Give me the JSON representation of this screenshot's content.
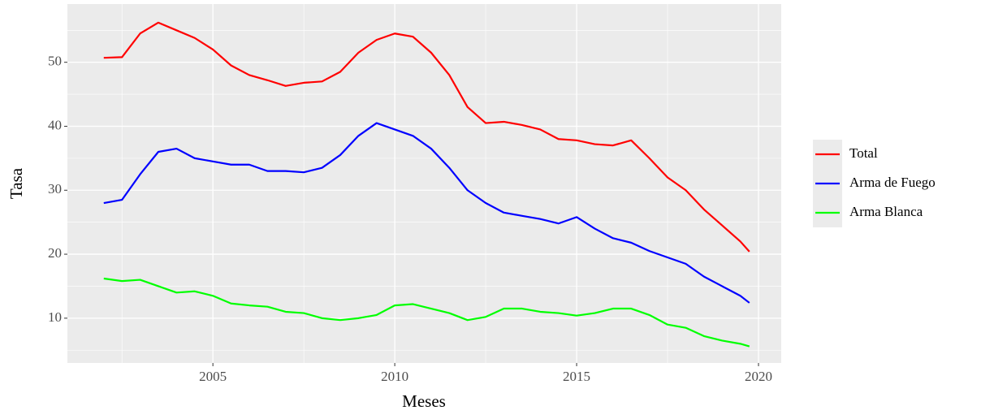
{
  "chart_data": {
    "type": "line",
    "xlabel": "Meses",
    "ylabel": "Tasa",
    "x": [
      2002,
      2002.5,
      2003,
      2003.5,
      2004,
      2004.5,
      2005,
      2005.5,
      2006,
      2006.5,
      2007,
      2007.5,
      2008,
      2008.5,
      2009,
      2009.5,
      2010,
      2010.5,
      2011,
      2011.5,
      2012,
      2012.5,
      2013,
      2013.5,
      2014,
      2014.5,
      2015,
      2015.5,
      2016,
      2016.5,
      2017,
      2017.5,
      2018,
      2018.5,
      2019,
      2019.5,
      2019.75
    ],
    "series": [
      {
        "name": "Total",
        "color": "#ff0000",
        "values": [
          50.7,
          50.8,
          54.5,
          56.2,
          55.0,
          53.8,
          52.0,
          49.5,
          48.0,
          47.2,
          46.3,
          46.8,
          47.0,
          48.5,
          51.5,
          53.5,
          54.5,
          54.0,
          51.5,
          48.0,
          43.0,
          40.5,
          40.7,
          40.2,
          39.5,
          38.0,
          37.8,
          37.2,
          37.0,
          37.8,
          35.0,
          32.0,
          30.0,
          27.0,
          24.5,
          22.0,
          20.4
        ]
      },
      {
        "name": "Arma de Fuego",
        "color": "#0000ff",
        "values": [
          28.0,
          28.5,
          32.5,
          36.0,
          36.5,
          35.0,
          34.5,
          34.0,
          34.0,
          33.0,
          33.0,
          32.8,
          33.5,
          35.5,
          38.5,
          40.5,
          39.5,
          38.5,
          36.5,
          33.5,
          30.0,
          28.0,
          26.5,
          26.0,
          25.5,
          24.8,
          25.8,
          24.0,
          22.5,
          21.8,
          20.5,
          19.5,
          18.5,
          16.5,
          15.0,
          13.5,
          12.4
        ]
      },
      {
        "name": "Arma Blanca",
        "color": "#00ff00",
        "values": [
          16.2,
          15.8,
          16.0,
          15.0,
          14.0,
          14.2,
          13.5,
          12.3,
          12.0,
          11.8,
          11.0,
          10.8,
          10.0,
          9.7,
          10.0,
          10.5,
          12.0,
          12.2,
          11.5,
          10.8,
          9.7,
          10.2,
          11.5,
          11.5,
          11.0,
          10.8,
          10.4,
          10.8,
          11.5,
          11.5,
          10.5,
          9.0,
          8.5,
          7.2,
          6.5,
          6.0,
          5.6
        ]
      }
    ],
    "xlim": [
      2001.0,
      2020.625
    ],
    "xticks": [
      2005,
      2010,
      2015,
      2020
    ],
    "ylim": [
      3.0,
      59.1
    ],
    "yticks": [
      10,
      20,
      30,
      40,
      50
    ],
    "grid": true,
    "legend": "right"
  }
}
